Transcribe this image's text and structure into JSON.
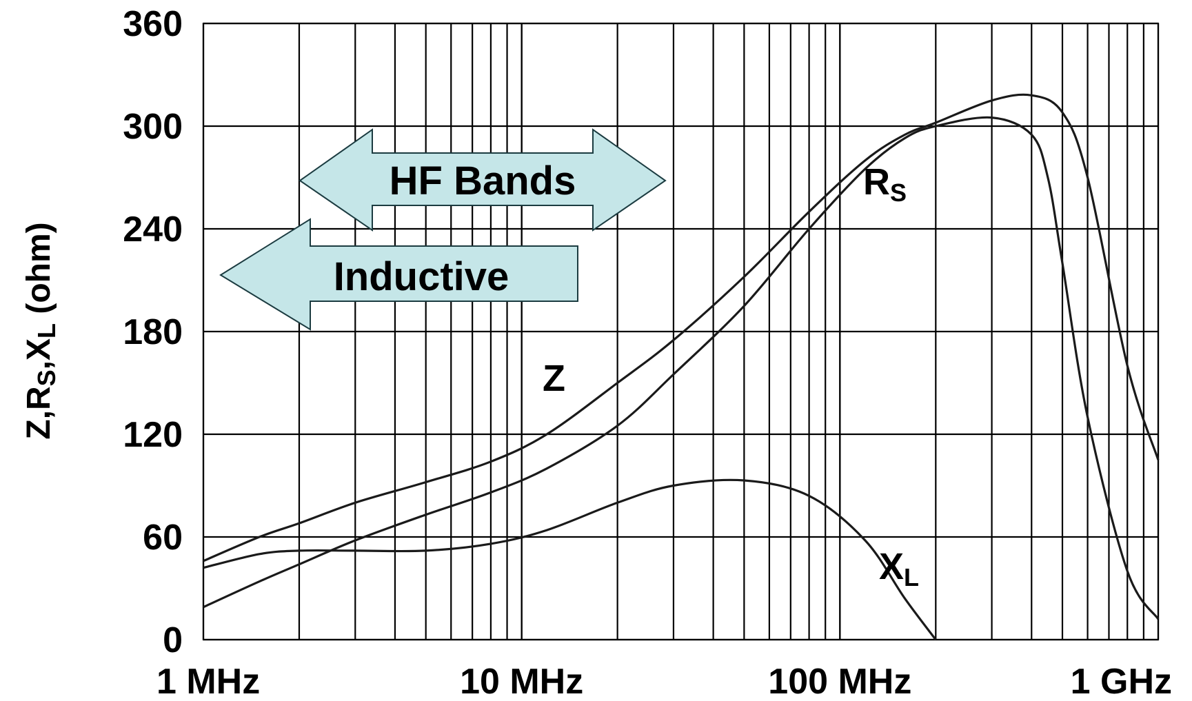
{
  "chart_data": {
    "type": "line",
    "title": "",
    "xlabel": "",
    "ylabel": "Z, R_S, X_L (ohm)",
    "x_scale": "log",
    "xlim": [
      1,
      1000
    ],
    "ylim": [
      0,
      360
    ],
    "grid": true,
    "yticks": [
      0,
      60,
      120,
      180,
      240,
      300,
      360
    ],
    "xtick_labels": [
      {
        "value": 1,
        "label": "1 MHz"
      },
      {
        "value": 10,
        "label": "10 MHz"
      },
      {
        "value": 100,
        "label": "100 MHz"
      },
      {
        "value": 1000,
        "label": "1 GHz"
      }
    ],
    "y_axis_label": {
      "main1": "Z,R",
      "sub1": "S",
      "main2": ",X",
      "sub2": "L",
      "main3": " (ohm)"
    },
    "series": [
      {
        "key": "Z",
        "name": "Z",
        "x": [
          1,
          1.5,
          2,
          3,
          5,
          8,
          12,
          20,
          30,
          50,
          80,
          120,
          160,
          200,
          300,
          400,
          500,
          600,
          800,
          1000
        ],
        "y": [
          46,
          60,
          68,
          80,
          92,
          104,
          120,
          150,
          175,
          212,
          250,
          280,
          295,
          302,
          315,
          318,
          308,
          270,
          160,
          105
        ]
      },
      {
        "key": "Rs",
        "name": "R",
        "sub": "S",
        "x": [
          1,
          1.5,
          2,
          3,
          5,
          8,
          12,
          20,
          30,
          50,
          80,
          120,
          160,
          200,
          300,
          400,
          450,
          500,
          600,
          800,
          1000
        ],
        "y": [
          19,
          34,
          44,
          58,
          73,
          86,
          100,
          125,
          155,
          195,
          240,
          275,
          293,
          300,
          305,
          295,
          270,
          220,
          130,
          40,
          12
        ]
      },
      {
        "key": "XL",
        "name": "X",
        "sub": "L",
        "x": [
          1,
          1.5,
          2,
          3,
          5,
          8,
          12,
          20,
          30,
          50,
          80,
          120,
          160,
          200
        ],
        "y": [
          42,
          50,
          52,
          52,
          52,
          56,
          64,
          80,
          90,
          93,
          84,
          58,
          24,
          0
        ]
      }
    ],
    "annotations": [
      {
        "key": "hf",
        "text": "HF Bands",
        "kind": "double-arrow",
        "x_range": [
          1.9,
          40
        ]
      },
      {
        "key": "ind",
        "text": "Inductive",
        "kind": "left-arrow",
        "x_range": [
          1.3,
          35
        ]
      }
    ],
    "colors": {
      "line": "#1a1a1a",
      "arrow_fill": "#c5e6e8",
      "arrow_stroke": "#1b3b40"
    }
  }
}
